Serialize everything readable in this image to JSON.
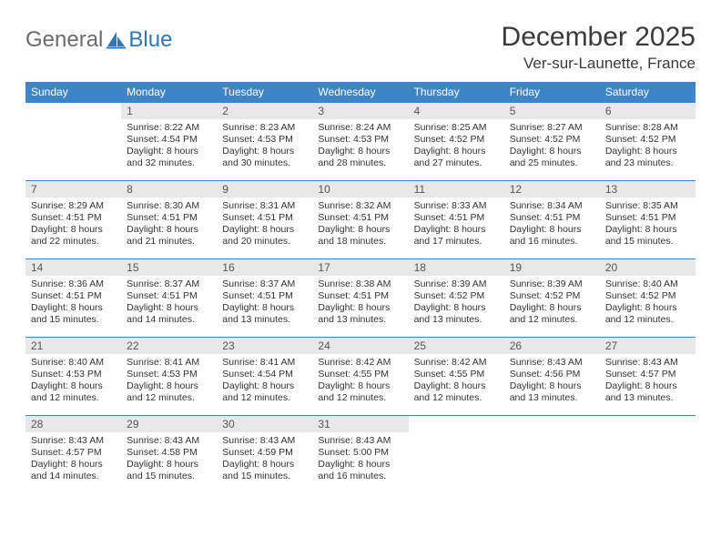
{
  "logo": {
    "text_a": "General",
    "text_b": "Blue"
  },
  "header": {
    "title": "December 2025",
    "location": "Ver-sur-Launette, France"
  },
  "calendar": {
    "day_header_bg": "#3d85c6",
    "day_header_fg": "#ffffff",
    "daynum_bg": "#e8e8e8",
    "border_color": "#3d85c6",
    "days_of_week": [
      "Sunday",
      "Monday",
      "Tuesday",
      "Wednesday",
      "Thursday",
      "Friday",
      "Saturday"
    ],
    "weeks": [
      [
        null,
        {
          "n": "1",
          "sunrise": "8:22 AM",
          "sunset": "4:54 PM",
          "daylight": "8 hours and 32 minutes."
        },
        {
          "n": "2",
          "sunrise": "8:23 AM",
          "sunset": "4:53 PM",
          "daylight": "8 hours and 30 minutes."
        },
        {
          "n": "3",
          "sunrise": "8:24 AM",
          "sunset": "4:53 PM",
          "daylight": "8 hours and 28 minutes."
        },
        {
          "n": "4",
          "sunrise": "8:25 AM",
          "sunset": "4:52 PM",
          "daylight": "8 hours and 27 minutes."
        },
        {
          "n": "5",
          "sunrise": "8:27 AM",
          "sunset": "4:52 PM",
          "daylight": "8 hours and 25 minutes."
        },
        {
          "n": "6",
          "sunrise": "8:28 AM",
          "sunset": "4:52 PM",
          "daylight": "8 hours and 23 minutes."
        }
      ],
      [
        {
          "n": "7",
          "sunrise": "8:29 AM",
          "sunset": "4:51 PM",
          "daylight": "8 hours and 22 minutes."
        },
        {
          "n": "8",
          "sunrise": "8:30 AM",
          "sunset": "4:51 PM",
          "daylight": "8 hours and 21 minutes."
        },
        {
          "n": "9",
          "sunrise": "8:31 AM",
          "sunset": "4:51 PM",
          "daylight": "8 hours and 20 minutes."
        },
        {
          "n": "10",
          "sunrise": "8:32 AM",
          "sunset": "4:51 PM",
          "daylight": "8 hours and 18 minutes."
        },
        {
          "n": "11",
          "sunrise": "8:33 AM",
          "sunset": "4:51 PM",
          "daylight": "8 hours and 17 minutes."
        },
        {
          "n": "12",
          "sunrise": "8:34 AM",
          "sunset": "4:51 PM",
          "daylight": "8 hours and 16 minutes."
        },
        {
          "n": "13",
          "sunrise": "8:35 AM",
          "sunset": "4:51 PM",
          "daylight": "8 hours and 15 minutes."
        }
      ],
      [
        {
          "n": "14",
          "sunrise": "8:36 AM",
          "sunset": "4:51 PM",
          "daylight": "8 hours and 15 minutes."
        },
        {
          "n": "15",
          "sunrise": "8:37 AM",
          "sunset": "4:51 PM",
          "daylight": "8 hours and 14 minutes."
        },
        {
          "n": "16",
          "sunrise": "8:37 AM",
          "sunset": "4:51 PM",
          "daylight": "8 hours and 13 minutes."
        },
        {
          "n": "17",
          "sunrise": "8:38 AM",
          "sunset": "4:51 PM",
          "daylight": "8 hours and 13 minutes."
        },
        {
          "n": "18",
          "sunrise": "8:39 AM",
          "sunset": "4:52 PM",
          "daylight": "8 hours and 13 minutes."
        },
        {
          "n": "19",
          "sunrise": "8:39 AM",
          "sunset": "4:52 PM",
          "daylight": "8 hours and 12 minutes."
        },
        {
          "n": "20",
          "sunrise": "8:40 AM",
          "sunset": "4:52 PM",
          "daylight": "8 hours and 12 minutes."
        }
      ],
      [
        {
          "n": "21",
          "sunrise": "8:40 AM",
          "sunset": "4:53 PM",
          "daylight": "8 hours and 12 minutes."
        },
        {
          "n": "22",
          "sunrise": "8:41 AM",
          "sunset": "4:53 PM",
          "daylight": "8 hours and 12 minutes."
        },
        {
          "n": "23",
          "sunrise": "8:41 AM",
          "sunset": "4:54 PM",
          "daylight": "8 hours and 12 minutes."
        },
        {
          "n": "24",
          "sunrise": "8:42 AM",
          "sunset": "4:55 PM",
          "daylight": "8 hours and 12 minutes."
        },
        {
          "n": "25",
          "sunrise": "8:42 AM",
          "sunset": "4:55 PM",
          "daylight": "8 hours and 12 minutes."
        },
        {
          "n": "26",
          "sunrise": "8:43 AM",
          "sunset": "4:56 PM",
          "daylight": "8 hours and 13 minutes."
        },
        {
          "n": "27",
          "sunrise": "8:43 AM",
          "sunset": "4:57 PM",
          "daylight": "8 hours and 13 minutes."
        }
      ],
      [
        {
          "n": "28",
          "sunrise": "8:43 AM",
          "sunset": "4:57 PM",
          "daylight": "8 hours and 14 minutes."
        },
        {
          "n": "29",
          "sunrise": "8:43 AM",
          "sunset": "4:58 PM",
          "daylight": "8 hours and 15 minutes."
        },
        {
          "n": "30",
          "sunrise": "8:43 AM",
          "sunset": "4:59 PM",
          "daylight": "8 hours and 15 minutes."
        },
        {
          "n": "31",
          "sunrise": "8:43 AM",
          "sunset": "5:00 PM",
          "daylight": "8 hours and 16 minutes."
        },
        null,
        null,
        null
      ]
    ],
    "labels": {
      "sunrise": "Sunrise:",
      "sunset": "Sunset:",
      "daylight": "Daylight:"
    }
  }
}
